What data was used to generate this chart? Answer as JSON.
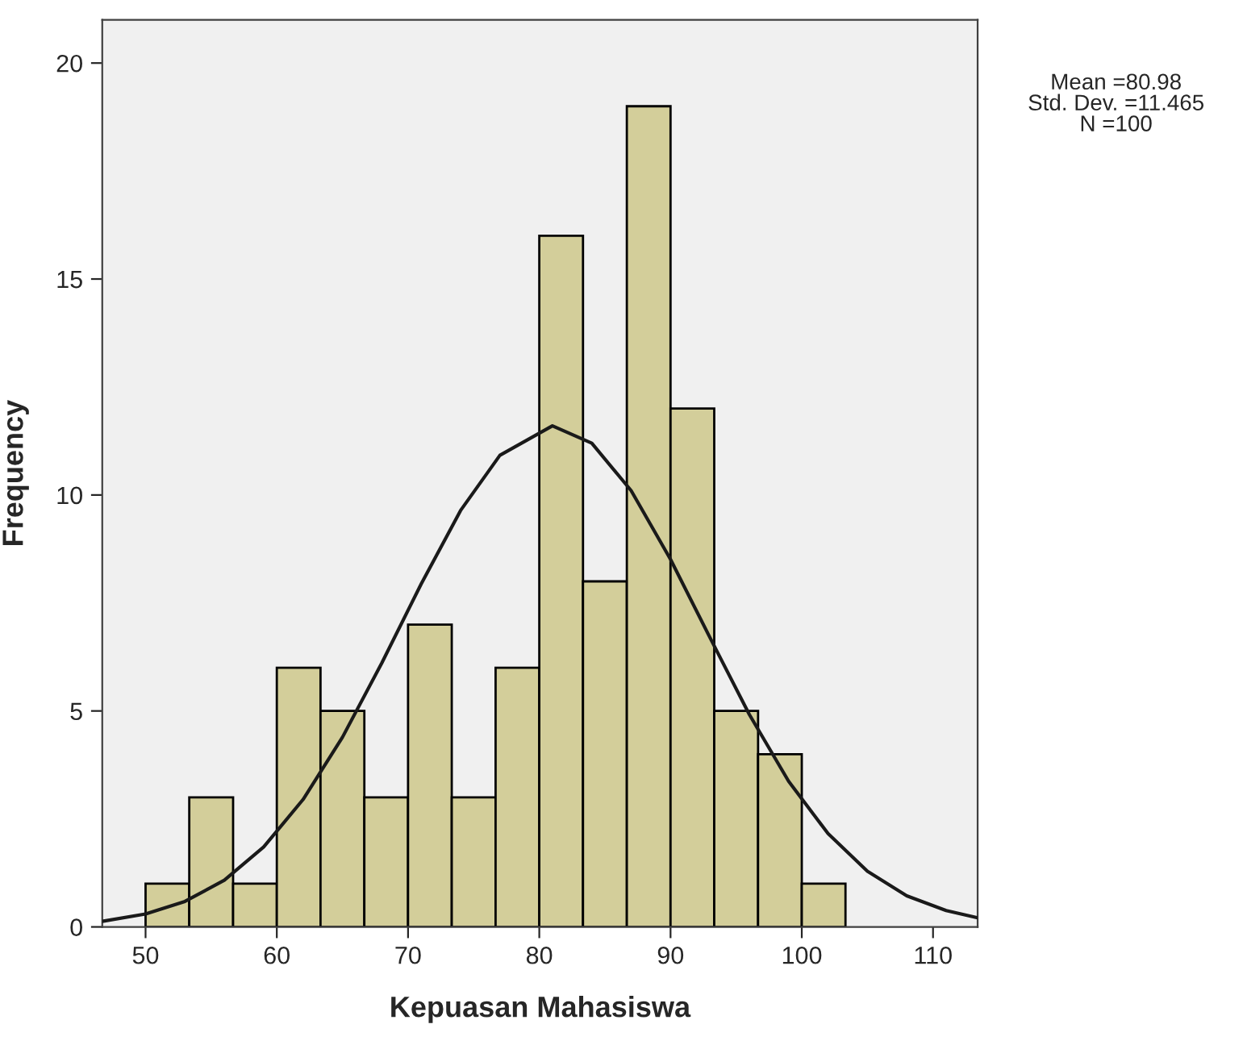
{
  "chart_data": {
    "type": "histogram",
    "xlabel": "Kepuasan Mahasiswa",
    "ylabel": "Frequency",
    "bins": [
      50,
      53.33,
      56.67,
      60,
      63.33,
      66.67,
      70,
      73.33,
      76.67,
      80,
      83.33,
      86.67,
      90,
      93.33,
      96.67,
      100,
      103.33
    ],
    "values": [
      1,
      3,
      1,
      6,
      5,
      3,
      7,
      3,
      6,
      16,
      8,
      19,
      12,
      5,
      4,
      1
    ],
    "color": "#d3ce9a",
    "series": [
      {
        "type": "line",
        "color": "#1a1a1a",
        "x": [
          46.7,
          50,
          53,
          56,
          59,
          62,
          65,
          68,
          71,
          74,
          77,
          81,
          84,
          87,
          90,
          93,
          96,
          99,
          102,
          105,
          108,
          111,
          113.4
        ],
        "values": [
          0.13,
          0.3,
          0.59,
          1.08,
          1.85,
          2.95,
          4.39,
          6.11,
          7.94,
          9.64,
          10.92,
          11.6,
          11.2,
          10.1,
          8.51,
          6.7,
          4.92,
          3.37,
          2.16,
          1.29,
          0.72,
          0.38,
          0.21
        ]
      }
    ],
    "xlim": [
      46.7,
      113.4
    ],
    "ylim": [
      0,
      21
    ],
    "xticks": [
      50,
      60,
      70,
      80,
      90,
      100,
      110
    ],
    "yticks": [
      0,
      5,
      10,
      15,
      20
    ],
    "grid": false,
    "annotations": [
      "Mean =80.98\nStd. Dev. =11.465\nN =100"
    ]
  }
}
